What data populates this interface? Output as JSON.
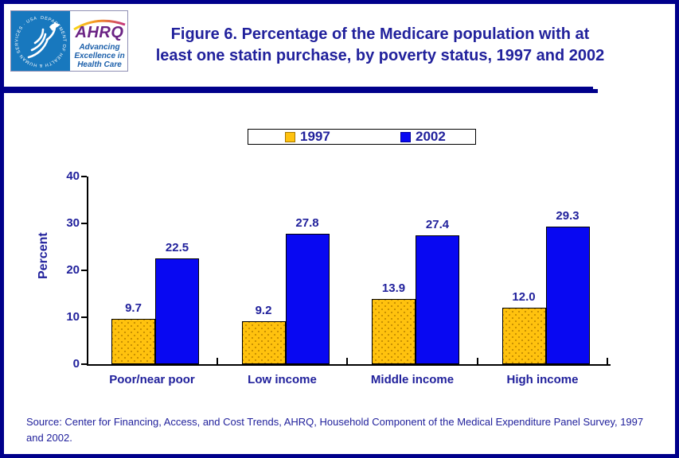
{
  "colors": {
    "frame_navy": "#00008B",
    "text_navy": "#21219C",
    "bar_yellow_1997": "#FFC20E",
    "bar_blue_2002": "#0808F2",
    "hhs_seal_blue": "#1878BE",
    "ahrq_purple": "#6B2384",
    "ahrq_tagline_blue": "#1B5FAA"
  },
  "header": {
    "logo": {
      "hhs_ring_text": "DEPARTMENT OF HEALTH & HUMAN SERVICES · USA",
      "ahrq_acronym": "AHRQ",
      "tagline_line1": "Advancing",
      "tagline_line2": "Excellence in",
      "tagline_line3": "Health Care"
    },
    "title_line1": "Figure 6. Percentage of the Medicare population with at",
    "title_line2": "least one statin purchase, by poverty status, 1997 and 2002"
  },
  "chart_data": {
    "type": "bar",
    "categories": [
      "Poor/near poor",
      "Low income",
      "Middle income",
      "High income"
    ],
    "series": [
      {
        "name": "1997",
        "color": "#FFC20E",
        "values": [
          9.7,
          9.2,
          13.9,
          12.0
        ]
      },
      {
        "name": "2002",
        "color": "#0808F2",
        "values": [
          22.5,
          27.8,
          27.4,
          29.3
        ]
      }
    ],
    "title": "Figure 6. Percentage of the Medicare population with at least one statin purchase, by poverty status, 1997 and 2002",
    "xlabel": "",
    "ylabel": "Percent",
    "ylim": [
      0,
      40
    ],
    "yticks": [
      0,
      10,
      20,
      30,
      40
    ],
    "grid": false,
    "legend_position": "top",
    "value_label_decimals": 1
  },
  "source_note": "Source: Center for Financing, Access, and Cost Trends, AHRQ, Household Component of the Medical Expenditure Panel Survey, 1997 and 2002."
}
